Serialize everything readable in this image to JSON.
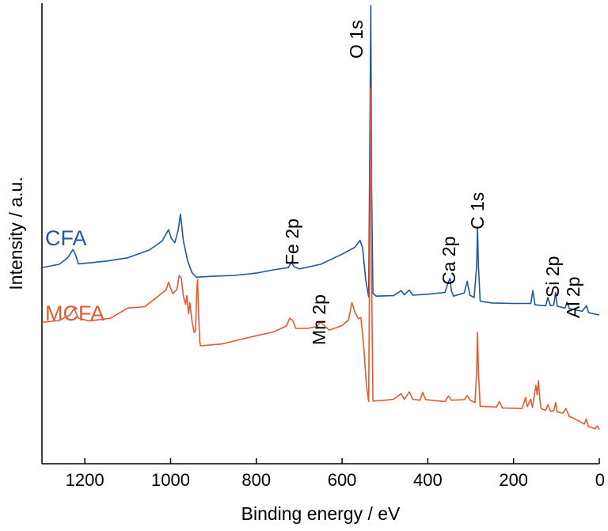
{
  "chart_data": {
    "type": "line",
    "xlabel": "Binding energy / eV",
    "ylabel": "Intensity / a.u.",
    "xlim": [
      1300,
      0
    ],
    "xticks": [
      1200,
      1000,
      800,
      600,
      400,
      200,
      0
    ],
    "x_reversed": true,
    "ylim": [
      0,
      100
    ],
    "y_ticks_shown": false,
    "grid": false,
    "legend": "inline labels left of curves",
    "colors": {
      "CFA": "#2255a4",
      "MCFA": "#e8592f"
    },
    "series": [
      {
        "name": "CFA",
        "points": [
          [
            1300,
            42.6
          ],
          [
            1260,
            43.3
          ],
          [
            1240,
            44.7
          ],
          [
            1228,
            46.5
          ],
          [
            1222,
            45.5
          ],
          [
            1215,
            43.4
          ],
          [
            1180,
            43.7
          ],
          [
            1150,
            44.0
          ],
          [
            1100,
            44.7
          ],
          [
            1050,
            46.4
          ],
          [
            1020,
            48.3
          ],
          [
            1005,
            50.8
          ],
          [
            998,
            48.9
          ],
          [
            990,
            48.0
          ],
          [
            982,
            50.8
          ],
          [
            977,
            54.2
          ],
          [
            970,
            48.3
          ],
          [
            960,
            44.0
          ],
          [
            950,
            41.5
          ],
          [
            940,
            40.5
          ],
          [
            900,
            40.7
          ],
          [
            850,
            40.9
          ],
          [
            800,
            41.4
          ],
          [
            760,
            42.1
          ],
          [
            725,
            42.6
          ],
          [
            718,
            43.8
          ],
          [
            712,
            42.8
          ],
          [
            700,
            42.3
          ],
          [
            650,
            43.3
          ],
          [
            600,
            45.5
          ],
          [
            570,
            47.0
          ],
          [
            558,
            48.5
          ],
          [
            552,
            46.8
          ],
          [
            545,
            40.0
          ],
          [
            538,
            36.2
          ],
          [
            536,
            60
          ],
          [
            533,
            99.5
          ],
          [
            531,
            60
          ],
          [
            528,
            37.0
          ],
          [
            520,
            36.4
          ],
          [
            480,
            36.5
          ],
          [
            462,
            37.6
          ],
          [
            455,
            36.7
          ],
          [
            443,
            37.7
          ],
          [
            435,
            36.6
          ],
          [
            400,
            36.8
          ],
          [
            360,
            37.2
          ],
          [
            352,
            39.5
          ],
          [
            348,
            40.3
          ],
          [
            345,
            37.5
          ],
          [
            340,
            36.4
          ],
          [
            315,
            37.1
          ],
          [
            308,
            39.6
          ],
          [
            302,
            36.6
          ],
          [
            292,
            36.1
          ],
          [
            286,
            43.0
          ],
          [
            284,
            51.2
          ],
          [
            282,
            43.0
          ],
          [
            278,
            35.3
          ],
          [
            250,
            34.9
          ],
          [
            200,
            34.8
          ],
          [
            160,
            34.8
          ],
          [
            155,
            37.6
          ],
          [
            150,
            34.5
          ],
          [
            125,
            34.3
          ],
          [
            120,
            36.1
          ],
          [
            114,
            34.3
          ],
          [
            106,
            34.5
          ],
          [
            102,
            37.2
          ],
          [
            98,
            34.2
          ],
          [
            80,
            33.8
          ],
          [
            75,
            35.1
          ],
          [
            70,
            33.7
          ],
          [
            40,
            33.1
          ],
          [
            30,
            34.3
          ],
          [
            25,
            32.8
          ],
          [
            10,
            32.5
          ],
          [
            0,
            32.3
          ]
        ]
      },
      {
        "name": "MCFA",
        "points": [
          [
            1300,
            30.7
          ],
          [
            1260,
            31.1
          ],
          [
            1235,
            32.3
          ],
          [
            1225,
            33.7
          ],
          [
            1215,
            31.6
          ],
          [
            1190,
            31.0
          ],
          [
            1140,
            31.6
          ],
          [
            1100,
            33.8
          ],
          [
            1060,
            34.1
          ],
          [
            1030,
            36.3
          ],
          [
            1010,
            37.8
          ],
          [
            1005,
            39.4
          ],
          [
            995,
            36.9
          ],
          [
            985,
            37.9
          ],
          [
            980,
            40.9
          ],
          [
            975,
            40.3
          ],
          [
            970,
            36.3
          ],
          [
            965,
            34.6
          ],
          [
            962,
            36.5
          ],
          [
            958,
            32.6
          ],
          [
            955,
            35.0
          ],
          [
            950,
            31.0
          ],
          [
            945,
            28.5
          ],
          [
            942,
            28.8
          ],
          [
            939,
            37.5
          ],
          [
            937,
            40.0
          ],
          [
            935,
            33.0
          ],
          [
            932,
            26.5
          ],
          [
            930,
            25.6
          ],
          [
            880,
            26.0
          ],
          [
            840,
            26.9
          ],
          [
            800,
            27.8
          ],
          [
            760,
            28.6
          ],
          [
            730,
            29.9
          ],
          [
            722,
            31.6
          ],
          [
            715,
            31.1
          ],
          [
            708,
            29.4
          ],
          [
            680,
            29.4
          ],
          [
            660,
            29.8
          ],
          [
            650,
            30.8
          ],
          [
            645,
            30.3
          ],
          [
            630,
            29.0
          ],
          [
            600,
            30.0
          ],
          [
            585,
            31.2
          ],
          [
            577,
            35.0
          ],
          [
            570,
            32.9
          ],
          [
            562,
            31.5
          ],
          [
            556,
            31.7
          ],
          [
            550,
            26.0
          ],
          [
            543,
            17.0
          ],
          [
            538,
            13.5
          ],
          [
            536,
            40
          ],
          [
            533,
            81.5
          ],
          [
            531,
            40
          ],
          [
            528,
            13.6
          ],
          [
            500,
            13.8
          ],
          [
            480,
            14.0
          ],
          [
            462,
            15.2
          ],
          [
            455,
            14.0
          ],
          [
            443,
            15.6
          ],
          [
            435,
            14.0
          ],
          [
            418,
            13.8
          ],
          [
            412,
            15.5
          ],
          [
            405,
            13.9
          ],
          [
            360,
            13.5
          ],
          [
            352,
            14.7
          ],
          [
            345,
            13.8
          ],
          [
            315,
            13.9
          ],
          [
            308,
            14.8
          ],
          [
            300,
            13.7
          ],
          [
            290,
            13.3
          ],
          [
            286,
            20
          ],
          [
            284,
            28.5
          ],
          [
            282,
            20
          ],
          [
            278,
            12.5
          ],
          [
            240,
            12.3
          ],
          [
            233,
            13.5
          ],
          [
            226,
            12.1
          ],
          [
            180,
            12.0
          ],
          [
            172,
            14.4
          ],
          [
            168,
            12.4
          ],
          [
            160,
            14.0
          ],
          [
            156,
            12.2
          ],
          [
            148,
            17.0
          ],
          [
            145,
            15.0
          ],
          [
            142,
            18.0
          ],
          [
            139,
            14.5
          ],
          [
            136,
            12.0
          ],
          [
            125,
            11.6
          ],
          [
            120,
            12.8
          ],
          [
            114,
            11.4
          ],
          [
            106,
            11.5
          ],
          [
            102,
            13.3
          ],
          [
            98,
            11.2
          ],
          [
            85,
            11.0
          ],
          [
            78,
            12.0
          ],
          [
            70,
            10.3
          ],
          [
            50,
            9.4
          ],
          [
            35,
            8.6
          ],
          [
            30,
            9.7
          ],
          [
            26,
            8.1
          ],
          [
            10,
            7.6
          ],
          [
            5,
            8.2
          ],
          [
            0,
            7.4
          ]
        ]
      }
    ],
    "annotations": [
      {
        "text": "O 1s",
        "x": 533
      },
      {
        "text": "Fe 2p",
        "x": 711
      },
      {
        "text": "Mn 2p",
        "x": 650
      },
      {
        "text": "Ca 2p",
        "x": 347
      },
      {
        "text": "C 1s",
        "x": 284
      },
      {
        "text": "Si 2p",
        "x": 102
      },
      {
        "text": "Al 2p",
        "x": 74
      }
    ]
  }
}
